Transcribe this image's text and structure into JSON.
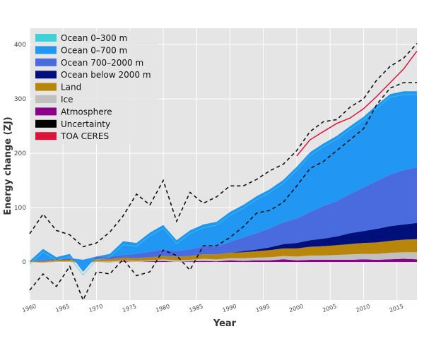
{
  "chart_data": {
    "type": "area",
    "xlabel": "Year",
    "ylabel": "Energy change (ZJ)",
    "xlim": [
      1960,
      2018
    ],
    "ylim": [
      -70,
      430
    ],
    "xticks": [
      1960,
      1965,
      1970,
      1975,
      1980,
      1985,
      1990,
      1995,
      2000,
      2005,
      2010,
      2015
    ],
    "yticks": [
      0,
      100,
      200,
      300,
      400
    ],
    "grid": true,
    "legend_position": "top-left",
    "x": [
      1960,
      1962,
      1964,
      1966,
      1968,
      1970,
      1972,
      1974,
      1976,
      1978,
      1980,
      1982,
      1984,
      1986,
      1988,
      1990,
      1992,
      1994,
      1996,
      1998,
      2000,
      2002,
      2004,
      2006,
      2008,
      2010,
      2012,
      2014,
      2016,
      2018
    ],
    "stack_order": [
      "Atmosphere",
      "Ice",
      "Land",
      "Ocean below 2000 m",
      "Ocean 700–2000 m",
      "Ocean 0–700 m"
    ],
    "series": [
      {
        "name": "Ocean 0–300 m",
        "kind": "line",
        "color": "#3fd0d8",
        "values": [
          0,
          30,
          5,
          10,
          -18,
          5,
          12,
          40,
          30,
          55,
          70,
          35,
          55,
          60,
          65,
          85,
          90,
          105,
          120,
          135,
          155,
          175,
          190,
          205,
          215,
          235,
          255,
          270,
          285,
          300
        ]
      },
      {
        "name": "Ocean 0–700 m",
        "kind": "area",
        "color": "#2196f3",
        "values": [
          0,
          20,
          3,
          8,
          -22,
          0,
          5,
          25,
          20,
          35,
          45,
          20,
          35,
          40,
          45,
          55,
          60,
          68,
          72,
          78,
          95,
          110,
          115,
          120,
          125,
          130,
          140,
          148,
          145,
          140
        ]
      },
      {
        "name": "Ocean 700–2000 m",
        "kind": "area",
        "color": "#4a6bde",
        "values": [
          0,
          2,
          2,
          3,
          2,
          5,
          5,
          5,
          8,
          10,
          12,
          10,
          12,
          15,
          15,
          20,
          25,
          30,
          35,
          40,
          45,
          52,
          60,
          65,
          72,
          80,
          88,
          95,
          100,
          102
        ]
      },
      {
        "name": "Ocean below 2000 m",
        "kind": "area",
        "color": "#00107a",
        "values": [
          0,
          0,
          0,
          0,
          0,
          0,
          0,
          0,
          0,
          0,
          0,
          0,
          0,
          0,
          0,
          0,
          2,
          3,
          5,
          8,
          10,
          12,
          14,
          16,
          20,
          22,
          25,
          27,
          28,
          30
        ]
      },
      {
        "name": "Land",
        "kind": "area",
        "color": "#b8860b",
        "values": [
          2,
          2,
          3,
          3,
          3,
          4,
          4,
          5,
          5,
          6,
          6,
          7,
          7,
          8,
          9,
          10,
          11,
          12,
          13,
          14,
          15,
          16,
          17,
          18,
          19,
          20,
          21,
          22,
          23,
          24
        ]
      },
      {
        "name": "Ice",
        "kind": "area",
        "color": "#c0c0c0",
        "values": [
          0,
          1,
          1,
          1,
          1,
          1,
          2,
          2,
          2,
          2,
          3,
          3,
          3,
          4,
          4,
          4,
          5,
          5,
          6,
          6,
          7,
          8,
          8,
          9,
          10,
          10,
          11,
          12,
          12,
          13
        ]
      },
      {
        "name": "Atmosphere",
        "kind": "area",
        "color": "#8b008b",
        "values": [
          0,
          -1,
          0,
          0,
          -2,
          0,
          -1,
          1,
          0,
          1,
          2,
          0,
          1,
          2,
          1,
          3,
          2,
          3,
          3,
          5,
          3,
          4,
          4,
          4,
          4,
          5,
          4,
          5,
          6,
          5
        ]
      },
      {
        "name": "Uncertainty",
        "kind": "band",
        "color": "#000000",
        "upper": [
          52,
          88,
          58,
          50,
          28,
          35,
          55,
          85,
          125,
          105,
          150,
          75,
          128,
          108,
          120,
          140,
          140,
          152,
          168,
          180,
          205,
          240,
          258,
          262,
          285,
          300,
          335,
          360,
          375,
          402
        ],
        "lower": [
          -52,
          -22,
          -45,
          -8,
          -70,
          -18,
          -22,
          5,
          -25,
          -18,
          22,
          12,
          -15,
          30,
          30,
          45,
          65,
          90,
          95,
          110,
          140,
          172,
          185,
          205,
          225,
          245,
          290,
          320,
          330,
          330
        ]
      },
      {
        "name": "TOA CERES",
        "kind": "line",
        "color": "#dc143c",
        "x": [
          2000,
          2002,
          2004,
          2006,
          2008,
          2010,
          2012,
          2014,
          2016,
          2018
        ],
        "values": [
          195,
          225,
          240,
          255,
          265,
          282,
          305,
          330,
          355,
          388
        ]
      }
    ]
  }
}
